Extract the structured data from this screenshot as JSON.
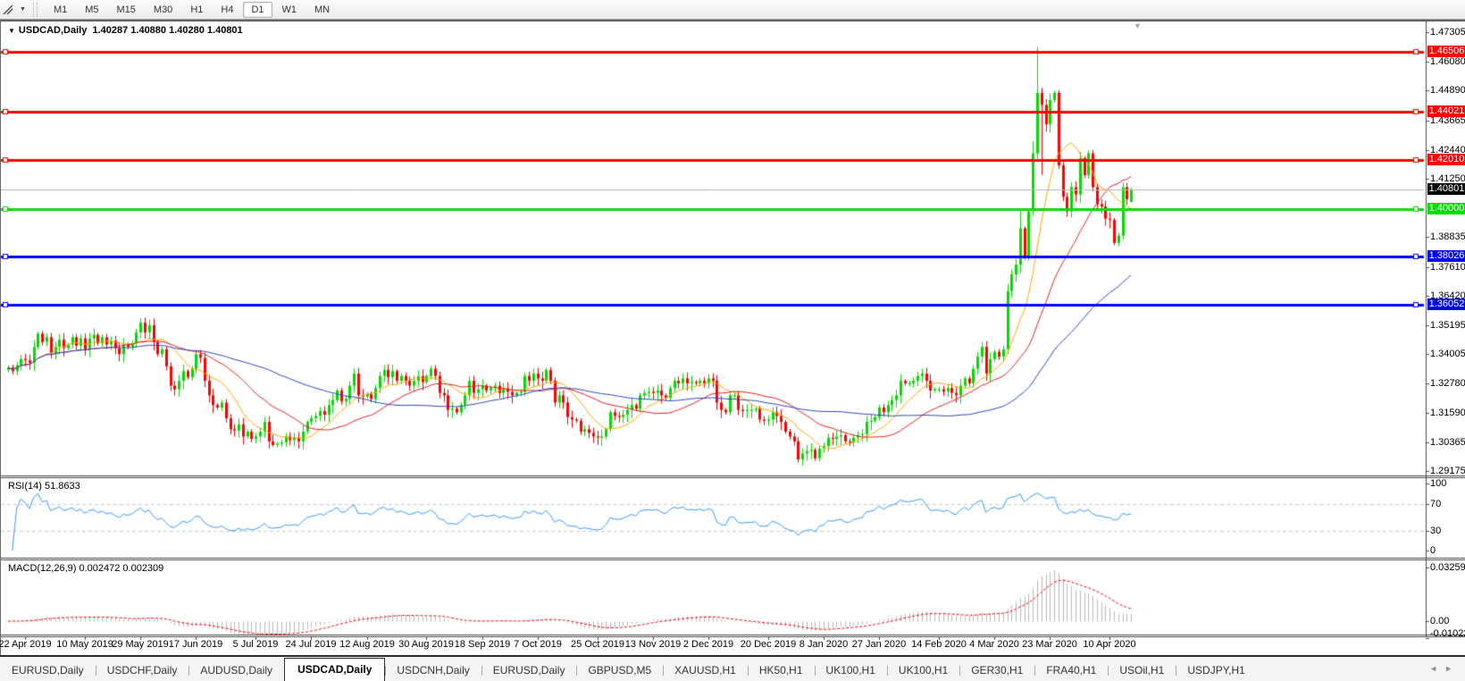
{
  "toolbar": {
    "chart_cursor_icon": "cursor-crosshair-icon",
    "timeframes": [
      "M1",
      "M5",
      "M15",
      "M30",
      "H1",
      "H4",
      "D1",
      "W1",
      "MN"
    ],
    "active_timeframe": "D1"
  },
  "icons": {
    "caret_down": "▼",
    "shift_marker": "▼",
    "nav_left": "◄",
    "nav_right": "►"
  },
  "chart": {
    "title": "USDCAD,Daily",
    "ohlc": "1.40287 1.40880 1.40280 1.40801",
    "rsi_label": "RSI(14) 51.8633",
    "macd_label": "MACD(12,26,9) 0.002472 0.002309"
  },
  "chart_data": {
    "type": "candlestick",
    "symbol": "USDCAD",
    "period": "Daily",
    "current_bar": {
      "open": 1.40287,
      "high": 1.4088,
      "low": 1.4028,
      "close": 1.40801
    },
    "price_range": {
      "top": 1.47305,
      "bottom": 1.29175
    },
    "price_axis_ticks": [
      "1.47305",
      "1.46080",
      "1.44890",
      "1.43665",
      "1.42440",
      "1.41250",
      "1.38835",
      "1.37610",
      "1.36420",
      "1.35195",
      "1.34005",
      "1.32780",
      "1.31590",
      "1.30365",
      "1.29175"
    ],
    "rsi_axis_ticks": [
      "100",
      "70",
      "30",
      "0"
    ],
    "macd_axis_ticks": [
      "0.032595",
      "0.00",
      "-0.010227"
    ],
    "hlines": [
      {
        "price": 1.46506,
        "label": "1.46506",
        "color": "#ff0000"
      },
      {
        "price": 1.44021,
        "label": "1.44021",
        "color": "#ff0000"
      },
      {
        "price": 1.4201,
        "label": "1.42010",
        "color": "#ff0000"
      },
      {
        "price": 1.4,
        "label": "1.40000",
        "color": "#00dd00"
      },
      {
        "price": 1.38026,
        "label": "1.38026",
        "color": "#0000ff"
      },
      {
        "price": 1.36052,
        "label": "1.36052",
        "color": "#0000ff"
      }
    ],
    "current_price": {
      "value": 1.40801,
      "label": "1.40801",
      "line_color": "#b5b5b5",
      "tag_bg": "#000000"
    },
    "colors": {
      "bull": "#00dc00",
      "bear": "#ff0000",
      "ma_fast": "#ffa500",
      "ma_mid": "#e82020",
      "ma_slow": "#2b46c8",
      "rsi": "#3398ff",
      "rsi_levels": "#c8c8c8",
      "macd_hist": "#b8b8b8",
      "macd_signal": "#ff0000"
    },
    "indicators": {
      "ma_periods": [
        10,
        25,
        55
      ],
      "rsi": {
        "period": 14,
        "levels": [
          70,
          30
        ],
        "value": 51.8633
      },
      "macd": {
        "fast": 12,
        "slow": 26,
        "signal": 9,
        "value": 0.002472,
        "signal_value": 0.002309
      }
    },
    "date_labels": [
      {
        "label": "22 Apr 2019",
        "idx": 4
      },
      {
        "label": "10 May 2019",
        "idx": 18
      },
      {
        "label": "29 May 2019",
        "idx": 31
      },
      {
        "label": "17 Jun 2019",
        "idx": 44
      },
      {
        "label": "5 Jul 2019",
        "idx": 58
      },
      {
        "label": "24 Jul 2019",
        "idx": 71
      },
      {
        "label": "12 Aug 2019",
        "idx": 84
      },
      {
        "label": "30 Aug 2019",
        "idx": 98
      },
      {
        "label": "18 Sep 2019",
        "idx": 111
      },
      {
        "label": "7 Oct 2019",
        "idx": 124
      },
      {
        "label": "25 Oct 2019",
        "idx": 138
      },
      {
        "label": "13 Nov 2019",
        "idx": 151
      },
      {
        "label": "2 Dec 2019",
        "idx": 164
      },
      {
        "label": "20 Dec 2019",
        "idx": 178
      },
      {
        "label": "8 Jan 2020",
        "idx": 191
      },
      {
        "label": "27 Jan 2020",
        "idx": 204
      },
      {
        "label": "14 Feb 2020",
        "idx": 218
      },
      {
        "label": "4 Mar 2020",
        "idx": 231
      },
      {
        "label": "23 Mar 2020",
        "idx": 244
      },
      {
        "label": "10 Apr 2020",
        "idx": 258
      }
    ],
    "closes": [
      1.3345,
      1.333,
      1.3355,
      1.338,
      1.3375,
      1.3365,
      1.343,
      1.3485,
      1.345,
      1.347,
      1.3405,
      1.343,
      1.346,
      1.3425,
      1.344,
      1.347,
      1.3435,
      1.3465,
      1.342,
      1.3465,
      1.348,
      1.3445,
      1.347,
      1.344,
      1.3455,
      1.3425,
      1.34,
      1.344,
      1.343,
      1.3445,
      1.349,
      1.353,
      1.349,
      1.352,
      1.345,
      1.34,
      1.342,
      1.335,
      1.327,
      1.3255,
      1.329,
      1.333,
      1.3305,
      1.334,
      1.34,
      1.3385,
      1.329,
      1.323,
      1.319,
      1.318,
      1.32,
      1.3135,
      1.309,
      1.3085,
      1.311,
      1.306,
      1.308,
      1.305,
      1.306,
      1.308,
      1.312,
      1.304,
      1.3025,
      1.303,
      1.3035,
      1.306,
      1.3045,
      1.3055,
      1.304,
      1.308,
      1.312,
      1.3135,
      1.3145,
      1.3165,
      1.315,
      1.319,
      1.321,
      1.325,
      1.3205,
      1.3215,
      1.327,
      1.332,
      1.323,
      1.3225,
      1.3235,
      1.3215,
      1.326,
      1.331,
      1.3335,
      1.3305,
      1.333,
      1.329,
      1.331,
      1.329,
      1.327,
      1.329,
      1.331,
      1.3285,
      1.331,
      1.334,
      1.331,
      1.324,
      1.323,
      1.317,
      1.3175,
      1.316,
      1.319,
      1.323,
      1.329,
      1.324,
      1.3255,
      1.327,
      1.325,
      1.326,
      1.327,
      1.324,
      1.326,
      1.3245,
      1.323,
      1.324,
      1.3245,
      1.331,
      1.329,
      1.332,
      1.33,
      1.329,
      1.3335,
      1.329,
      1.32,
      1.323,
      1.32,
      1.314,
      1.313,
      1.3125,
      1.308,
      1.309,
      1.3075,
      1.306,
      1.3055,
      1.306,
      1.309,
      1.316,
      1.3145,
      1.314,
      1.315,
      1.317,
      1.319,
      1.3175,
      1.323,
      1.324,
      1.3245,
      1.324,
      1.325,
      1.323,
      1.322,
      1.326,
      1.329,
      1.328,
      1.33,
      1.328,
      1.3285,
      1.328,
      1.329,
      1.328,
      1.33,
      1.329,
      1.32,
      1.317,
      1.316,
      1.323,
      1.323,
      1.317,
      1.3165,
      1.317,
      1.317,
      1.3175,
      1.313,
      1.3125,
      1.313,
      1.316,
      1.3145,
      1.312,
      1.308,
      1.306,
      1.304,
      1.2965,
      1.299,
      1.3,
      1.3005,
      1.297,
      1.301,
      1.302,
      1.3055,
      1.305,
      1.306,
      1.3065,
      1.304,
      1.3035,
      1.3055,
      1.3065,
      1.307,
      1.312,
      1.3125,
      1.314,
      1.318,
      1.316,
      1.319,
      1.321,
      1.323,
      1.329,
      1.328,
      1.328,
      1.329,
      1.331,
      1.332,
      1.329,
      1.325,
      1.3255,
      1.3255,
      1.3245,
      1.326,
      1.324,
      1.323,
      1.327,
      1.33,
      1.328,
      1.334,
      1.339,
      1.343,
      1.332,
      1.338,
      1.341,
      1.339,
      1.342,
      1.366,
      1.373,
      1.377,
      1.392,
      1.38,
      1.399,
      1.423,
      1.448,
      1.443,
      1.435,
      1.445,
      1.448,
      1.418,
      1.405,
      1.399,
      1.409,
      1.406,
      1.421,
      1.414,
      1.423,
      1.409,
      1.402,
      1.401,
      1.396,
      1.3955,
      1.386,
      1.389,
      1.409,
      1.404,
      1.40801
    ],
    "wick_overrides": {
      "62": {
        "l": 1.3018
      },
      "185": {
        "l": 1.2952
      },
      "234": {
        "l": 1.34,
        "h": 1.369
      },
      "237": {
        "h": 1.3995
      },
      "240": {
        "h": 1.428
      },
      "241": {
        "h": 1.4669
      },
      "242": {
        "h": 1.45,
        "l": 1.414
      },
      "245": {
        "h": 1.449
      },
      "261": {
        "h": 1.411
      },
      "263": {
        "o": 1.40287,
        "h": 1.4088,
        "l": 1.4028,
        "c": 1.40801
      }
    }
  },
  "tabs": {
    "items": [
      "EURUSD,Daily",
      "USDCHF,Daily",
      "AUDUSD,Daily",
      "USDCAD,Daily",
      "USDCNH,Daily",
      "EURUSD,Daily",
      "GBPUSD,M5",
      "XAUUSD,H1",
      "HK50,H1",
      "UK100,H1",
      "UK100,H1",
      "GER30,H1",
      "FRA40,H1",
      "USOil,H1",
      "USDJPY,H1"
    ],
    "active_index": 3
  }
}
